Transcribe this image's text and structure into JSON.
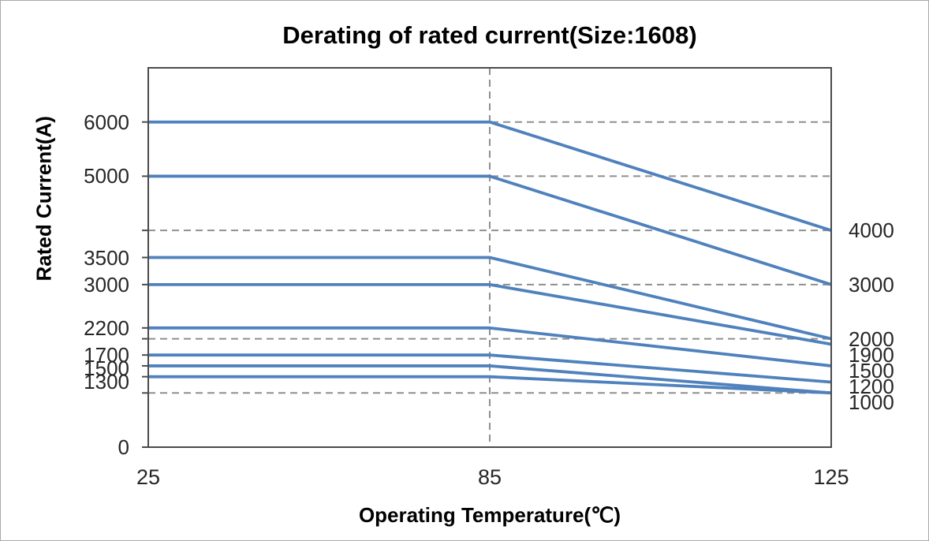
{
  "title": "Derating of rated current(Size:1608)",
  "y_axis": {
    "label": "Rated Current(A)",
    "tick_labels": [
      {
        "text": "6000",
        "value": 6000
      },
      {
        "text": "5000",
        "value": 5000
      },
      {
        "text": "3500",
        "value": 3500
      },
      {
        "text": "3000",
        "value": 3000
      },
      {
        "text": "2200",
        "value": 2200
      },
      {
        "text": "1700",
        "value": 1700
      },
      {
        "text": "1500",
        "value": 1500
      },
      {
        "text": "1300",
        "value": 1300
      },
      {
        "text": "0",
        "value": 0
      }
    ]
  },
  "x_axis": {
    "label": "Operating Temperature(℃)",
    "tick_labels": [
      {
        "text": "25",
        "pct": 0
      },
      {
        "text": "85",
        "pct": 50
      },
      {
        "text": "125",
        "pct": 100
      }
    ]
  },
  "right_labels": [
    {
      "text": "4000",
      "value": 4000
    },
    {
      "text": "3000",
      "value": 3000
    },
    {
      "text": "2000",
      "value": 2000
    },
    {
      "text": "1900",
      "value": 1900
    },
    {
      "text": "1500",
      "value": 1500
    },
    {
      "text": "1200",
      "value": 1200
    },
    {
      "text": "1000",
      "value": 1000
    }
  ],
  "chart_data": {
    "type": "line",
    "title": "Derating of rated current(Size:1608)",
    "xlabel": "Operating Temperature(℃)",
    "ylabel": "Rated Current(A)",
    "x": [
      25,
      85,
      125
    ],
    "x_positions_pct": [
      0,
      50,
      100
    ],
    "series": [
      {
        "name": "6000A",
        "values": [
          6000,
          6000,
          4000
        ],
        "end_label": "4000"
      },
      {
        "name": "5000A",
        "values": [
          5000,
          5000,
          3000
        ],
        "end_label": "3000"
      },
      {
        "name": "3500A",
        "values": [
          3500,
          3500,
          2000
        ],
        "end_label": "2000"
      },
      {
        "name": "3000A",
        "values": [
          3000,
          3000,
          1900
        ],
        "end_label": "1900"
      },
      {
        "name": "2200A",
        "values": [
          2200,
          2200,
          1500
        ],
        "end_label": "1500"
      },
      {
        "name": "1700A",
        "values": [
          1700,
          1700,
          1200
        ],
        "end_label": "1200"
      },
      {
        "name": "1500A",
        "values": [
          1500,
          1500,
          1000
        ],
        "end_label": "1000"
      },
      {
        "name": "1300A",
        "values": [
          1300,
          1300,
          1000
        ],
        "end_label": "1000"
      }
    ],
    "ylim": [
      0,
      7000
    ],
    "gridlines_y": [
      6000,
      5000,
      4000,
      3000,
      2000,
      1000
    ],
    "guide_line_x": 85,
    "grid": true,
    "legend_position": "none",
    "colors": {
      "line": "#4f81bd",
      "grid": "#8f8f8f",
      "frame": "#4a4a4a",
      "text": "#262626"
    }
  }
}
